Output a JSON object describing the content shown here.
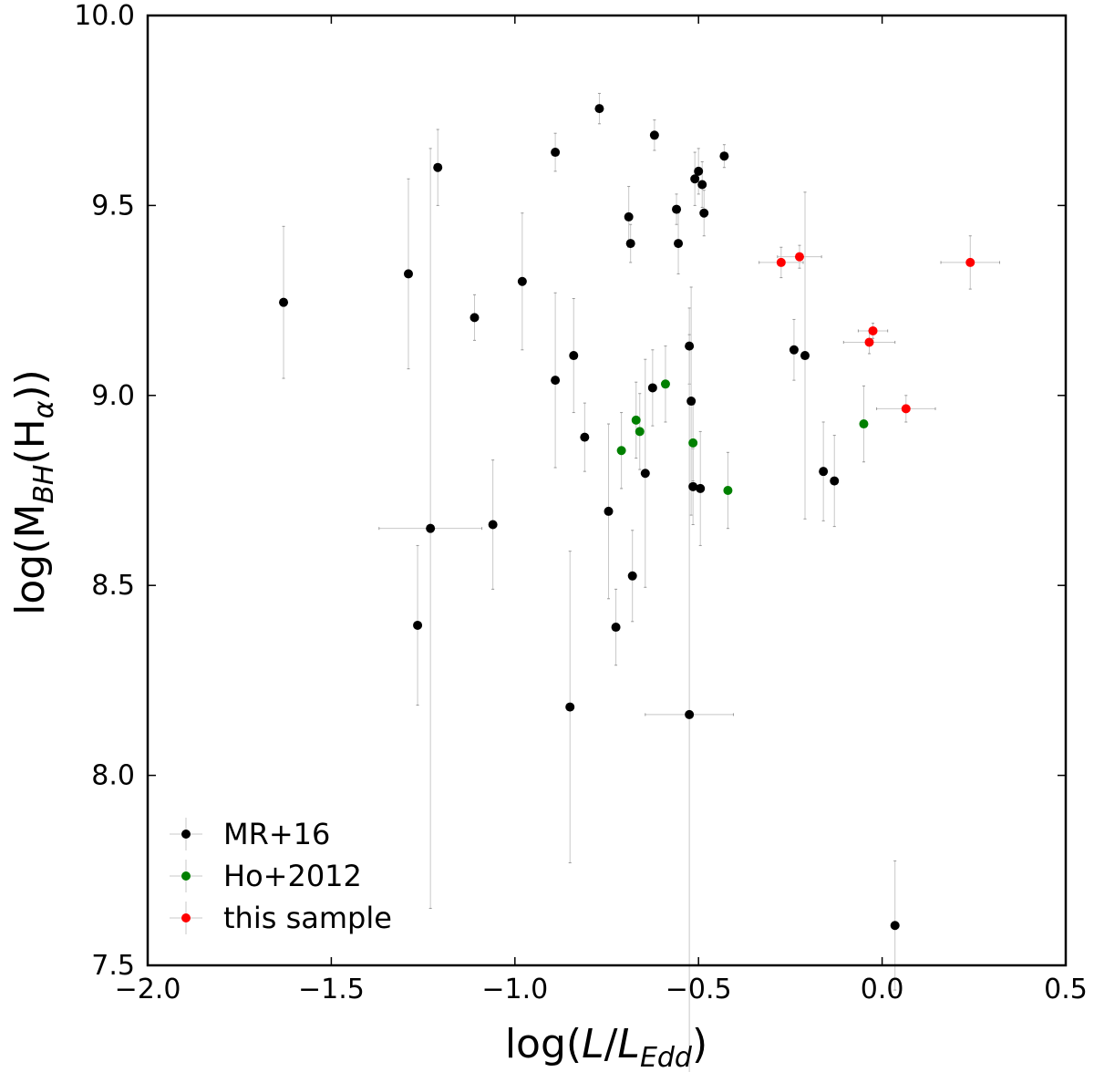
{
  "chart_data": {
    "type": "scatter",
    "xlabel": "log(L/L_Edd)",
    "ylabel": "log(M_BH(H_α))",
    "xlim": [
      -2.0,
      0.5
    ],
    "ylim": [
      7.5,
      10.0
    ],
    "x_ticks": [
      "−2.0",
      "−1.5",
      "−1.0",
      "−0.5",
      "0.0",
      "0.5"
    ],
    "y_ticks": [
      "7.5",
      "8.0",
      "8.5",
      "9.0",
      "9.5",
      "10.0"
    ],
    "grid": false,
    "legend_position": "lower left",
    "series": [
      {
        "name": "MR+16",
        "color": "#000000",
        "points": [
          {
            "x": -1.63,
            "y": 9.245,
            "yerr": [
              0.2,
              0.2
            ]
          },
          {
            "x": -1.29,
            "y": 9.32,
            "yerr": [
              0.25,
              0.25
            ]
          },
          {
            "x": -1.21,
            "y": 9.6,
            "yerr": [
              0.1,
              0.1
            ]
          },
          {
            "x": -1.11,
            "y": 9.205,
            "yerr": [
              0.06,
              0.06
            ]
          },
          {
            "x": -0.98,
            "y": 9.3,
            "yerr": [
              0.18,
              0.18
            ]
          },
          {
            "x": -0.89,
            "y": 9.64,
            "yerr": [
              0.05,
              0.05
            ]
          },
          {
            "x": -0.89,
            "y": 9.04,
            "yerr": [
              0.23,
              0.23
            ]
          },
          {
            "x": -0.84,
            "y": 9.105,
            "yerr": [
              0.15,
              0.15
            ]
          },
          {
            "x": -0.81,
            "y": 8.89,
            "yerr": [
              0.09,
              0.09
            ]
          },
          {
            "x": -0.77,
            "y": 9.755,
            "yerr": [
              0.04,
              0.04
            ]
          },
          {
            "x": -0.69,
            "y": 9.47,
            "yerr": [
              0.08,
              0.08
            ]
          },
          {
            "x": -0.685,
            "y": 9.4,
            "yerr": [
              0.05,
              0.05
            ]
          },
          {
            "x": -0.62,
            "y": 9.685,
            "yerr": [
              0.04,
              0.04
            ]
          },
          {
            "x": -0.625,
            "y": 9.02,
            "yerr": [
              0.1,
              0.1
            ]
          },
          {
            "x": -0.56,
            "y": 9.49,
            "yerr": [
              0.04,
              0.04
            ]
          },
          {
            "x": -0.555,
            "y": 9.4,
            "yerr": [
              0.08,
              0.08
            ]
          },
          {
            "x": -0.51,
            "y": 9.57,
            "yerr": [
              0.07,
              0.07
            ]
          },
          {
            "x": -0.5,
            "y": 9.59,
            "yerr": [
              0.06,
              0.06
            ]
          },
          {
            "x": -0.49,
            "y": 9.555,
            "yerr": [
              0.06,
              0.06
            ]
          },
          {
            "x": -0.485,
            "y": 9.48,
            "yerr": [
              0.06,
              0.06
            ]
          },
          {
            "x": -0.43,
            "y": 9.63,
            "yerr": [
              0.03,
              0.03
            ]
          },
          {
            "x": -0.525,
            "y": 9.13,
            "yerr": [
              0.1,
              0.1
            ]
          },
          {
            "x": -0.52,
            "y": 8.985,
            "yerr": [
              0.3,
              0.3
            ]
          },
          {
            "x": -0.515,
            "y": 8.76,
            "yerr": [
              0.1,
              0.1
            ]
          },
          {
            "x": -0.495,
            "y": 8.755,
            "yerr": [
              0.15,
              0.15
            ]
          },
          {
            "x": -0.645,
            "y": 8.795,
            "yerr": [
              0.3,
              0.3
            ]
          },
          {
            "x": -0.745,
            "y": 8.695,
            "yerr": [
              0.23,
              0.23
            ]
          },
          {
            "x": -0.68,
            "y": 8.525,
            "yerr": [
              0.12,
              0.12
            ]
          },
          {
            "x": -0.725,
            "y": 8.39,
            "yerr": [
              0.1,
              0.1
            ]
          },
          {
            "x": -0.85,
            "y": 8.18,
            "yerr": [
              0.41,
              0.41
            ]
          },
          {
            "x": -0.525,
            "y": 8.16,
            "yerr": [
              1.0,
              1.0
            ],
            "xerr": [
              0.12,
              0.12
            ]
          },
          {
            "x": -1.06,
            "y": 8.66,
            "yerr": [
              0.17,
              0.17
            ]
          },
          {
            "x": -1.23,
            "y": 8.65,
            "yerr": [
              1.0,
              1.0
            ],
            "xerr": [
              0.14,
              0.14
            ]
          },
          {
            "x": -1.265,
            "y": 8.395,
            "yerr": [
              0.21,
              0.21
            ]
          },
          {
            "x": -0.24,
            "y": 9.12,
            "yerr": [
              0.08,
              0.08
            ]
          },
          {
            "x": -0.21,
            "y": 9.105,
            "yerr": [
              0.43,
              0.43
            ]
          },
          {
            "x": -0.16,
            "y": 8.8,
            "yerr": [
              0.13,
              0.13
            ]
          },
          {
            "x": -0.13,
            "y": 8.775,
            "yerr": [
              0.12,
              0.12
            ]
          },
          {
            "x": 0.035,
            "y": 7.605,
            "yerr": [
              0.17,
              0.17
            ]
          }
        ]
      },
      {
        "name": "Ho+2012",
        "color": "#008000",
        "points": [
          {
            "x": -0.71,
            "y": 8.855,
            "yerr": [
              0.1,
              0.1
            ]
          },
          {
            "x": -0.67,
            "y": 8.935,
            "yerr": [
              0.1,
              0.1
            ]
          },
          {
            "x": -0.66,
            "y": 8.905,
            "yerr": [
              0.1,
              0.1
            ]
          },
          {
            "x": -0.59,
            "y": 9.03,
            "yerr": [
              0.1,
              0.1
            ]
          },
          {
            "x": -0.515,
            "y": 8.875,
            "yerr": [
              0.1,
              0.1
            ]
          },
          {
            "x": -0.42,
            "y": 8.75,
            "yerr": [
              0.1,
              0.1
            ]
          },
          {
            "x": -0.05,
            "y": 8.925,
            "yerr": [
              0.1,
              0.1
            ]
          }
        ]
      },
      {
        "name": "this sample",
        "color": "#ff0000",
        "points": [
          {
            "x": -0.275,
            "y": 9.35,
            "yerr": [
              0.04,
              0.04
            ],
            "xerr": [
              0.06,
              0.06
            ]
          },
          {
            "x": -0.225,
            "y": 9.365,
            "yerr": [
              0.03,
              0.03
            ],
            "xerr": [
              0.06,
              0.06
            ]
          },
          {
            "x": 0.24,
            "y": 9.35,
            "yerr": [
              0.07,
              0.07
            ],
            "xerr": [
              0.08,
              0.08
            ]
          },
          {
            "x": -0.025,
            "y": 9.17,
            "yerr": [
              0.02,
              0.02
            ],
            "xerr": [
              0.04,
              0.04
            ]
          },
          {
            "x": -0.035,
            "y": 9.14,
            "yerr": [
              0.03,
              0.03
            ],
            "xerr": [
              0.07,
              0.07
            ]
          },
          {
            "x": 0.065,
            "y": 8.965,
            "yerr": [
              0.035,
              0.035
            ],
            "xerr": [
              0.08,
              0.08
            ]
          }
        ]
      }
    ]
  }
}
